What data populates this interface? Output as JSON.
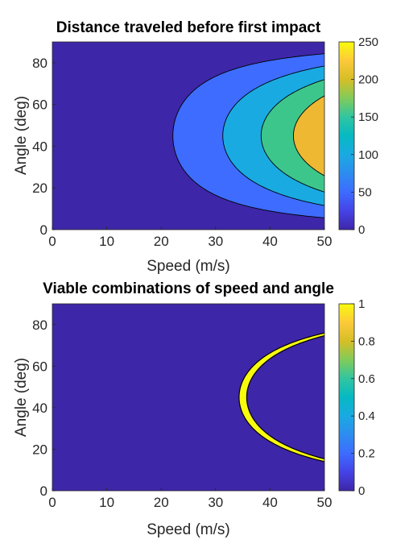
{
  "chart_data": [
    {
      "type": "heatmap",
      "subtype": "filled-contour",
      "title": "Distance traveled before first impact",
      "xlabel": "Speed (m/s)",
      "ylabel": "Angle (deg)",
      "xlim": [
        0,
        50
      ],
      "ylim": [
        0,
        90
      ],
      "xticks": [
        0,
        10,
        20,
        30,
        40,
        50
      ],
      "yticks": [
        0,
        20,
        40,
        60,
        80
      ],
      "colorbar": {
        "min": 0,
        "max": 250,
        "ticks": [
          0,
          50,
          100,
          150,
          200,
          250
        ]
      },
      "contour_levels": [
        0,
        50,
        100,
        150,
        200,
        250
      ],
      "contour_min_speeds_at_45deg": [
        22.1,
        31.3,
        38.3,
        44.3,
        49.5
      ],
      "grid": false
    },
    {
      "type": "heatmap",
      "title": "Viable combinations of speed and angle",
      "xlabel": "Speed (m/s)",
      "ylabel": "Angle (deg)",
      "xlim": [
        0,
        50
      ],
      "ylim": [
        0,
        90
      ],
      "xticks": [
        0,
        10,
        20,
        30,
        40,
        50
      ],
      "yticks": [
        0,
        20,
        40,
        60,
        80
      ],
      "colorbar": {
        "min": 0,
        "max": 1,
        "ticks": [
          0,
          0.2,
          0.4,
          0.6,
          0.8,
          1
        ]
      },
      "viable_band_distance_range": [
        120,
        130
      ],
      "viable_value": 1,
      "other_value": 0,
      "grid": false
    }
  ],
  "colors": {
    "level0": "#3e26a8",
    "level1": "#3d6cfe",
    "level2": "#1aaae2",
    "level3": "#3dc68b",
    "level4": "#eeb833",
    "viable": "#f9fb0e"
  }
}
